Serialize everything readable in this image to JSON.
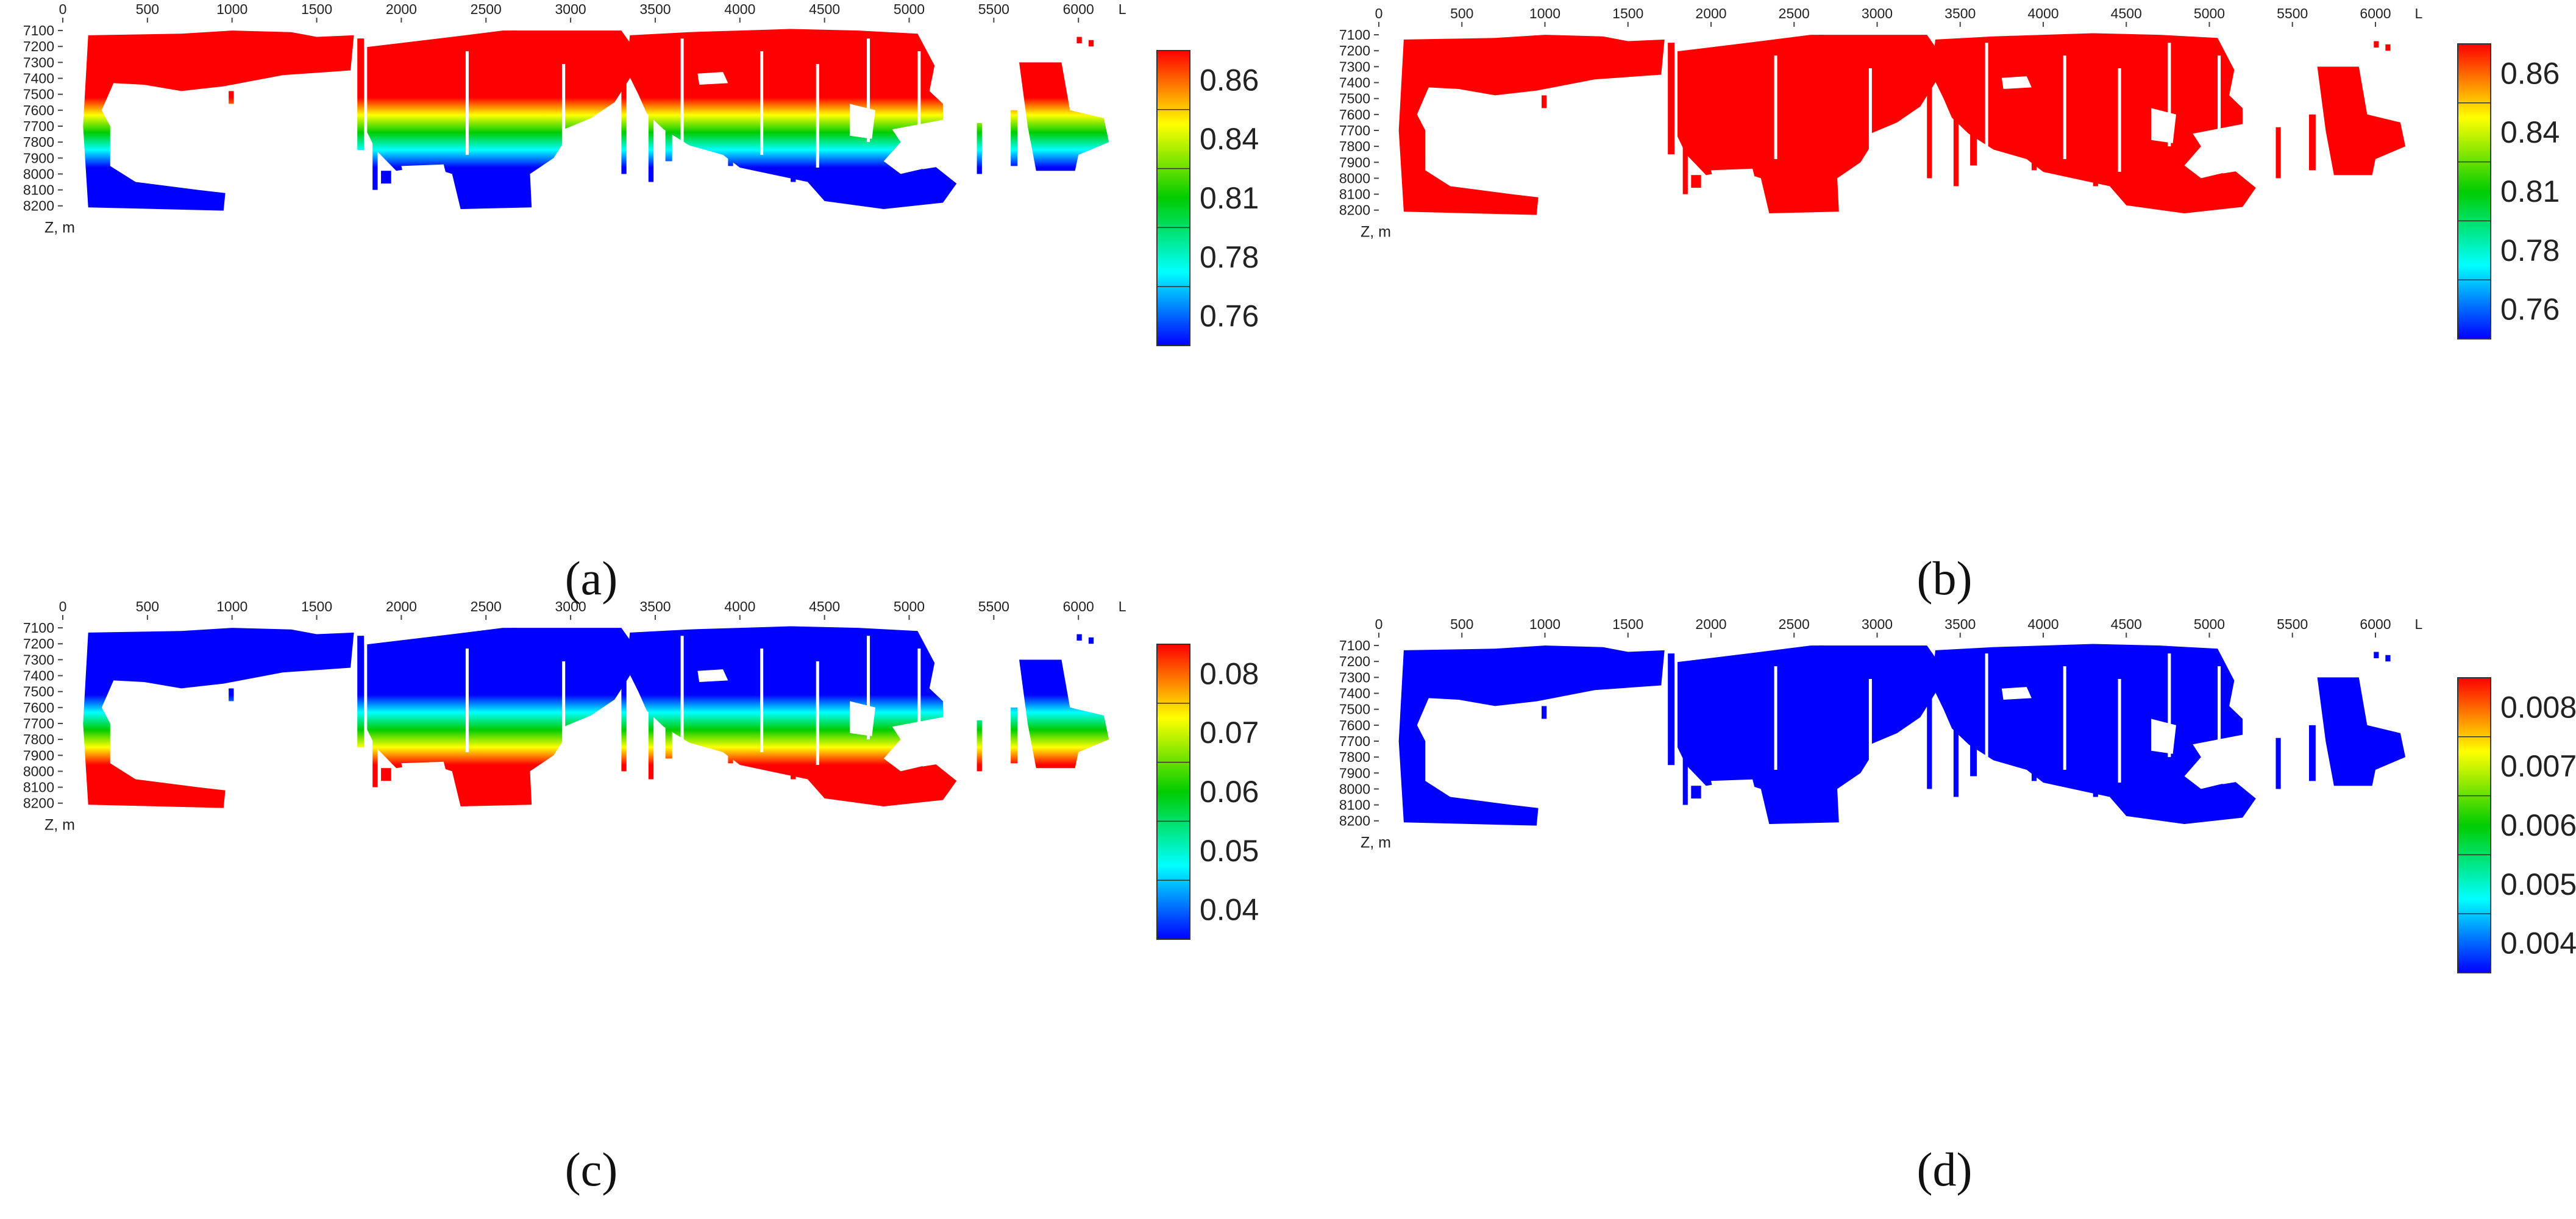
{
  "chart_data": [
    {
      "type": "heatmap",
      "panel_label": "(a)",
      "x_ticks": [
        "0",
        "500",
        "1000",
        "1500",
        "2000",
        "2500",
        "3000",
        "3500",
        "4000",
        "4500",
        "5000",
        "5500",
        "6000"
      ],
      "y_ticks": [
        "7100",
        "7200",
        "7300",
        "7400",
        "7500",
        "7600",
        "7700",
        "7800",
        "7900",
        "8000",
        "8100",
        "8200"
      ],
      "x_unit": "L",
      "y_unit": "Z, m",
      "xlim": [
        0,
        6200
      ],
      "ylim": [
        7080,
        8230
      ],
      "colorbar": [
        "0.86",
        "0.84",
        "0.81",
        "0.78",
        "0.76"
      ],
      "fill": "depth-gradient",
      "colors": {
        "high": "#ff0000",
        "mid_high": "#ffff00",
        "mid": "#00cc00",
        "mid_low": "#00ffff",
        "low": "#0000ff"
      },
      "gradient": {
        "top_color": "#ff0000",
        "bottom_color": "#0000ff",
        "start_depth": 7520,
        "end_depth": 7960
      }
    },
    {
      "type": "heatmap",
      "panel_label": "(b)",
      "x_ticks": [
        "0",
        "500",
        "1000",
        "1500",
        "2000",
        "2500",
        "3000",
        "3500",
        "4000",
        "4500",
        "5000",
        "5500",
        "6000"
      ],
      "y_ticks": [
        "7100",
        "7200",
        "7300",
        "7400",
        "7500",
        "7600",
        "7700",
        "7800",
        "7900",
        "8000",
        "8100",
        "8200"
      ],
      "x_unit": "L",
      "y_unit": "Z, m",
      "xlim": [
        0,
        6200
      ],
      "ylim": [
        7080,
        8230
      ],
      "colorbar": [
        "0.86",
        "0.84",
        "0.81",
        "0.78",
        "0.76"
      ],
      "fill": "uniform",
      "colors": {
        "uniform": "#ff0000"
      }
    },
    {
      "type": "heatmap",
      "panel_label": "(c)",
      "x_ticks": [
        "0",
        "500",
        "1000",
        "1500",
        "2000",
        "2500",
        "3000",
        "3500",
        "4000",
        "4500",
        "5000",
        "5500",
        "6000"
      ],
      "y_ticks": [
        "7100",
        "7200",
        "7300",
        "7400",
        "7500",
        "7600",
        "7700",
        "7800",
        "7900",
        "8000",
        "8100",
        "8200"
      ],
      "x_unit": "L",
      "y_unit": "Z, m",
      "xlim": [
        0,
        6200
      ],
      "ylim": [
        7080,
        8230
      ],
      "colorbar": [
        "0.08",
        "0.07",
        "0.06",
        "0.05",
        "0.04"
      ],
      "fill": "depth-gradient",
      "colors": {
        "high": "#ff0000",
        "mid_high": "#ffff00",
        "mid": "#00cc00",
        "mid_low": "#00ffff",
        "low": "#0000ff"
      },
      "gradient": {
        "top_color": "#0000ff",
        "bottom_color": "#ff0000",
        "start_depth": 7520,
        "end_depth": 7960
      }
    },
    {
      "type": "heatmap",
      "panel_label": "(d)",
      "x_ticks": [
        "0",
        "500",
        "1000",
        "1500",
        "2000",
        "2500",
        "3000",
        "3500",
        "4000",
        "4500",
        "5000",
        "5500",
        "6000"
      ],
      "y_ticks": [
        "7100",
        "7200",
        "7300",
        "7400",
        "7500",
        "7600",
        "7700",
        "7800",
        "7900",
        "8000",
        "8100",
        "8200"
      ],
      "x_unit": "L",
      "y_unit": "Z, m",
      "xlim": [
        0,
        6200
      ],
      "ylim": [
        7080,
        8230
      ],
      "colorbar": [
        "0.008",
        "0.007",
        "0.006",
        "0.005",
        "0.004"
      ],
      "fill": "uniform",
      "colors": {
        "uniform": "#0000ff"
      }
    }
  ]
}
